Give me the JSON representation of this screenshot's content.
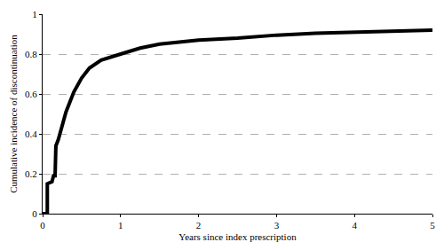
{
  "chart_data": {
    "type": "line",
    "xlabel": "Years since index prescription",
    "ylabel": "Cumulative incidence of discontinuation",
    "x": [
      0,
      0.05,
      0.06,
      0.06,
      0.12,
      0.14,
      0.16,
      0.17,
      0.2,
      0.25,
      0.3,
      0.4,
      0.5,
      0.6,
      0.75,
      1,
      1.25,
      1.5,
      2,
      2.5,
      3,
      3.5,
      4,
      4.5,
      5
    ],
    "values": [
      0,
      0,
      0,
      0.15,
      0.16,
      0.19,
      0.19,
      0.34,
      0.37,
      0.44,
      0.51,
      0.61,
      0.68,
      0.73,
      0.77,
      0.8,
      0.83,
      0.85,
      0.87,
      0.88,
      0.895,
      0.905,
      0.91,
      0.915,
      0.92
    ],
    "color": "#000000",
    "xlim": [
      0,
      5
    ],
    "ylim": [
      0,
      1
    ],
    "xticks": [
      0,
      1,
      2,
      3,
      4,
      5
    ],
    "yticks": [
      0,
      0.2,
      0.4,
      0.6,
      0.8,
      1
    ],
    "grid": true
  }
}
